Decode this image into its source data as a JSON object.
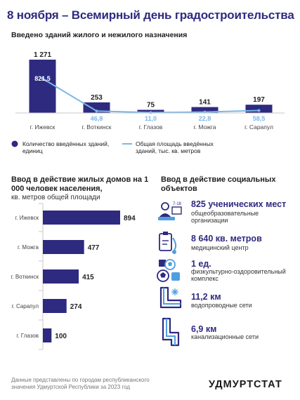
{
  "page_title": "8 ноября – Всемирный день градостроительства",
  "colors": {
    "accent": "#2e2a80",
    "line": "#7bb7e8",
    "bar": "#2e2a80"
  },
  "chart_data": [
    {
      "type": "bar+line",
      "title": "Введено зданий жилого и нежилого назначения",
      "categories": [
        "г. Ижевск",
        "г. Воткинск",
        "г. Глазов",
        "г. Можга",
        "г. Сарапул"
      ],
      "series": [
        {
          "name": "Количество введённых зданий, единиц",
          "type": "bar",
          "values": [
            1271,
            253,
            75,
            141,
            197
          ],
          "labels": [
            "1 271",
            "253",
            "75",
            "141",
            "197"
          ]
        },
        {
          "name": "Общая площадь введённых зданий, тыс. кв. метров",
          "type": "line",
          "values": [
            821.5,
            46.8,
            11.0,
            22.8,
            58.5
          ],
          "labels": [
            "821,5",
            "46,8",
            "11,0",
            "22,8",
            "58,5"
          ]
        }
      ],
      "legend_position": "bottom"
    },
    {
      "type": "bar",
      "orientation": "horizontal",
      "title": "Ввод в действие жилых домов на 1 000 человек населения,",
      "subtitle": "кв. метров общей площади",
      "categories": [
        "г. Ижевск",
        "г. Можга",
        "г. Воткинск",
        "г. Сарапул",
        "г. Глазов"
      ],
      "values": [
        894,
        477,
        415,
        274,
        100
      ]
    }
  ],
  "social": {
    "title": "Ввод в действие социальных объектов",
    "items": [
      {
        "icon": "school-students-icon",
        "value": "825 ученических мест",
        "desc": "общеобразовательные организации"
      },
      {
        "icon": "medical-clipboard-icon",
        "value": "8 640 кв. метров",
        "desc": "медицинский центр"
      },
      {
        "icon": "sports-equipment-icon",
        "value": "1 ед.",
        "desc": "физкультурно-оздоровительный комплекс"
      },
      {
        "icon": "water-pipe-icon",
        "value": "11,2 км",
        "desc": "водопроводные сети"
      },
      {
        "icon": "sewer-pipe-icon",
        "value": "6,9 км",
        "desc": "канализационные сети"
      }
    ],
    "school_icon_text": "7-18"
  },
  "footnote": "Данные представлены по городам республиканского значения Удмуртской Республики за 2023 год",
  "logo": "УДМУРТСТАТ"
}
